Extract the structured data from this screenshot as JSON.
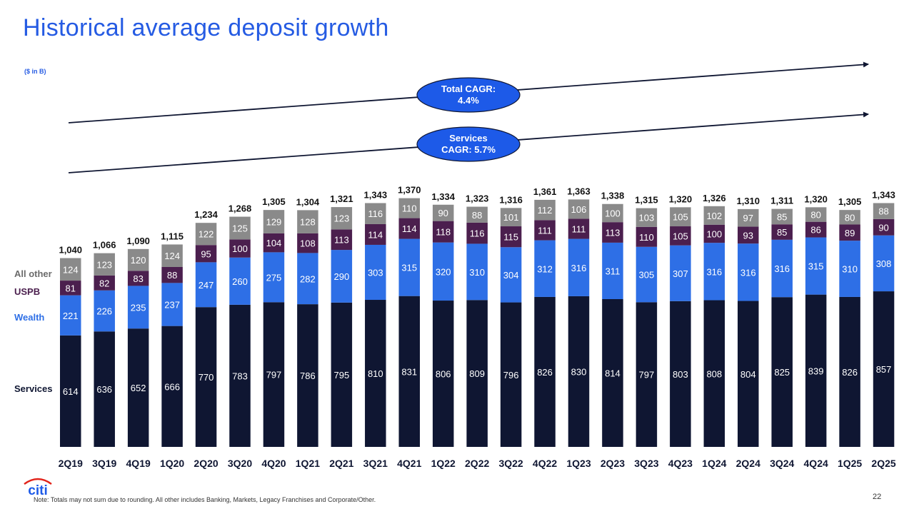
{
  "page": {
    "title": "Historical average deposit growth",
    "unit_note": "($ in B)",
    "footnote": "Note:    Totals may not sum due to rounding. All other includes Banking, Markets, Legacy Franchises and Corporate/Other.",
    "page_number": "22",
    "logo_text": "citi"
  },
  "colors": {
    "services": "#0f1632",
    "wealth": "#2e6fe6",
    "uspb": "#4b1f4e",
    "all_other": "#8a8a8a",
    "title": "#255be3",
    "callout": "#1d5ae8"
  },
  "chart_data": {
    "type": "bar",
    "stacked": true,
    "title": "Historical average deposit growth",
    "ylabel": "($ in B)",
    "categories": [
      "2Q19",
      "3Q19",
      "4Q19",
      "1Q20",
      "2Q20",
      "3Q20",
      "4Q20",
      "1Q21",
      "2Q21",
      "3Q21",
      "4Q21",
      "1Q22",
      "2Q22",
      "3Q22",
      "4Q22",
      "1Q23",
      "2Q23",
      "3Q23",
      "4Q23",
      "1Q24",
      "2Q24",
      "3Q24",
      "4Q24",
      "1Q25",
      "2Q25"
    ],
    "series": [
      {
        "name": "Services",
        "values": [
          614,
          636,
          652,
          666,
          770,
          783,
          797,
          786,
          795,
          810,
          831,
          806,
          809,
          796,
          826,
          830,
          814,
          797,
          803,
          808,
          804,
          825,
          839,
          826,
          857
        ]
      },
      {
        "name": "Wealth",
        "values": [
          221,
          226,
          235,
          237,
          247,
          260,
          275,
          282,
          290,
          303,
          315,
          320,
          310,
          304,
          312,
          316,
          311,
          305,
          307,
          316,
          316,
          316,
          315,
          310,
          308
        ]
      },
      {
        "name": "USPB",
        "values": [
          81,
          82,
          83,
          88,
          95,
          100,
          104,
          108,
          113,
          114,
          114,
          118,
          116,
          115,
          111,
          111,
          113,
          110,
          105,
          100,
          93,
          85,
          86,
          89,
          90
        ]
      },
      {
        "name": "All other",
        "values": [
          124,
          123,
          120,
          124,
          122,
          125,
          129,
          128,
          123,
          116,
          110,
          90,
          88,
          101,
          112,
          106,
          100,
          103,
          105,
          102,
          97,
          85,
          80,
          80,
          88
        ]
      }
    ],
    "totals": [
      "1,040",
      "1,066",
      "1,090",
      "1,115",
      "1,234",
      "1,268",
      "1,305",
      "1,304",
      "1,321",
      "1,343",
      "1,370",
      "1,334",
      "1,323",
      "1,316",
      "1,361",
      "1,363",
      "1,338",
      "1,315",
      "1,320",
      "1,326",
      "1,310",
      "1,311",
      "1,320",
      "1,305",
      "1,343"
    ],
    "legend": [
      "All other",
      "USPB",
      "Wealth",
      "Services"
    ],
    "annotations": [
      {
        "name": "total-cagr",
        "line1": "Total CAGR:",
        "line2": "4.4%"
      },
      {
        "name": "services-cagr",
        "line1": "Services",
        "line2": "CAGR: 5.7%"
      }
    ],
    "ylim": [
      0,
      1400
    ]
  }
}
